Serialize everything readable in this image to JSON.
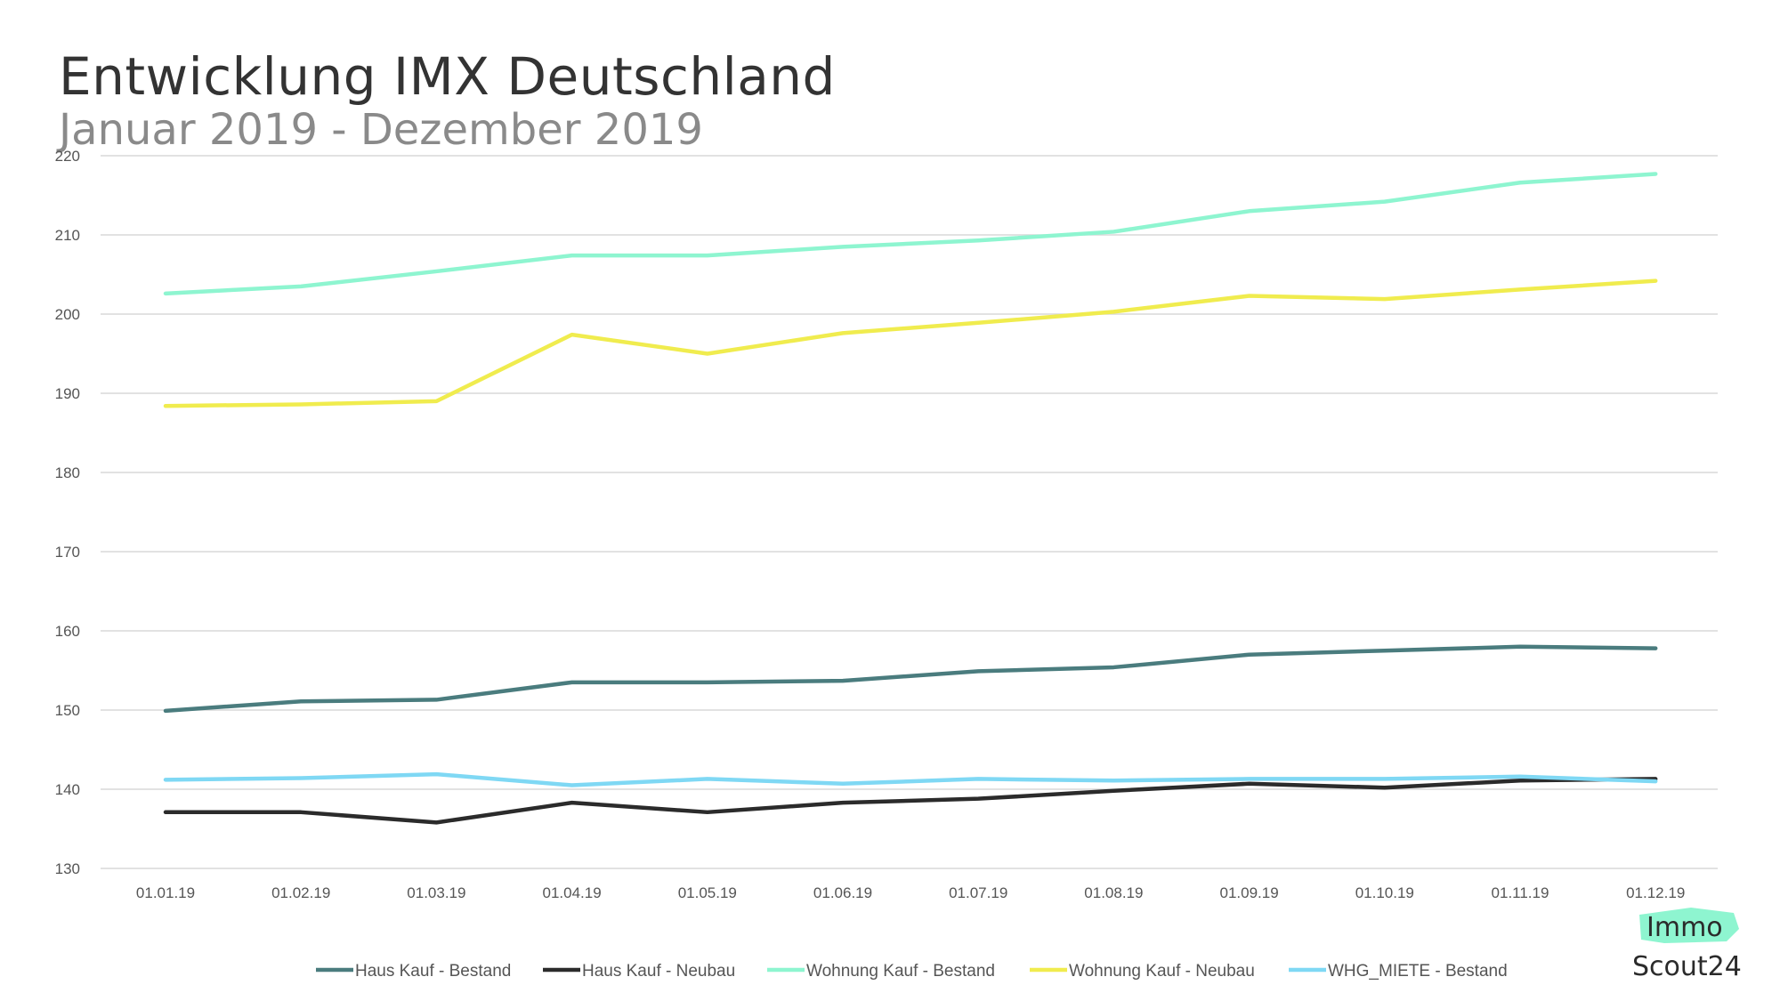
{
  "title": "Entwicklung IMX Deutschland",
  "subtitle": "Januar 2019 - Dezember 2019",
  "logo": {
    "line1": "Immo",
    "line2": "Scout24",
    "badge_color": "#8ef5d0"
  },
  "chart_data": {
    "type": "line",
    "categories": [
      "01.01.19",
      "01.02.19",
      "01.03.19",
      "01.04.19",
      "01.05.19",
      "01.06.19",
      "01.07.19",
      "01.08.19",
      "01.09.19",
      "01.10.19",
      "01.11.19",
      "01.12.19"
    ],
    "ylim": [
      130,
      220
    ],
    "yticks": [
      130,
      140,
      150,
      160,
      170,
      180,
      190,
      200,
      210,
      220
    ],
    "grid": true,
    "legend_position": "bottom",
    "series": [
      {
        "name": "Haus Kauf - Bestand",
        "color": "#4a7c7e",
        "values": [
          149.9,
          151.1,
          151.3,
          153.5,
          153.5,
          153.7,
          154.9,
          155.4,
          157.0,
          157.5,
          158.0,
          157.8
        ]
      },
      {
        "name": "Haus Kauf - Neubau",
        "color": "#2b2b2b",
        "values": [
          137.1,
          137.1,
          135.8,
          138.3,
          137.1,
          138.3,
          138.8,
          139.8,
          140.7,
          140.2,
          141.1,
          141.3
        ]
      },
      {
        "name": "Wohnung Kauf - Bestand",
        "color": "#8ef5d0",
        "values": [
          202.6,
          203.5,
          205.4,
          207.4,
          207.4,
          208.5,
          209.3,
          210.4,
          213.0,
          214.2,
          216.6,
          217.7
        ]
      },
      {
        "name": "Wohnung Kauf - Neubau",
        "color": "#f0ec4e",
        "values": [
          188.4,
          188.6,
          189.0,
          197.4,
          195.0,
          197.6,
          198.9,
          200.3,
          202.3,
          201.9,
          203.1,
          204.2
        ]
      },
      {
        "name": "WHG_MIETE - Bestand",
        "color": "#7fd8f4",
        "values": [
          141.2,
          141.4,
          141.9,
          140.5,
          141.3,
          140.7,
          141.3,
          141.1,
          141.3,
          141.3,
          141.6,
          141.0
        ]
      }
    ]
  }
}
